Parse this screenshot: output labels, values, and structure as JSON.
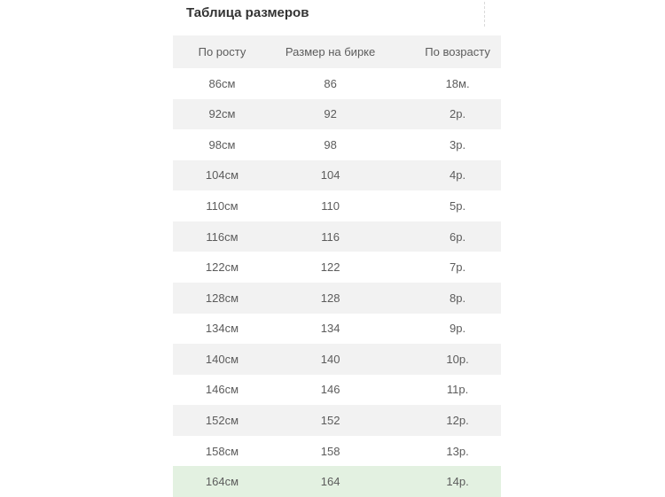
{
  "title": "Таблица размеров",
  "chart_data": {
    "type": "table",
    "title": "Таблица размеров",
    "columns": [
      "По росту",
      "Размер на бирке",
      "По возрасту"
    ],
    "rows": [
      [
        "86см",
        "86",
        "18м."
      ],
      [
        "92см",
        "92",
        "2р."
      ],
      [
        "98см",
        "98",
        "3р."
      ],
      [
        "104см",
        "104",
        "4р."
      ],
      [
        "110см",
        "110",
        "5р."
      ],
      [
        "116см",
        "116",
        "6р."
      ],
      [
        "122см",
        "122",
        "7р."
      ],
      [
        "128см",
        "128",
        "8р."
      ],
      [
        "134см",
        "134",
        "9р."
      ],
      [
        "140см",
        "140",
        "10р."
      ],
      [
        "146см",
        "146",
        "11р."
      ],
      [
        "152см",
        "152",
        "12р."
      ],
      [
        "158см",
        "158",
        "13р."
      ],
      [
        "164см",
        "164",
        "14р."
      ]
    ],
    "highlighted_row_index": 13,
    "layout": {
      "striped": true,
      "stripe_color": "#f2f2f2",
      "header_bg": "#f2f2f2",
      "highlight_color": "#e3f1e1",
      "text_color": "#5c5c5c",
      "title_color": "#333333",
      "legend": "last row highlighted green"
    }
  }
}
